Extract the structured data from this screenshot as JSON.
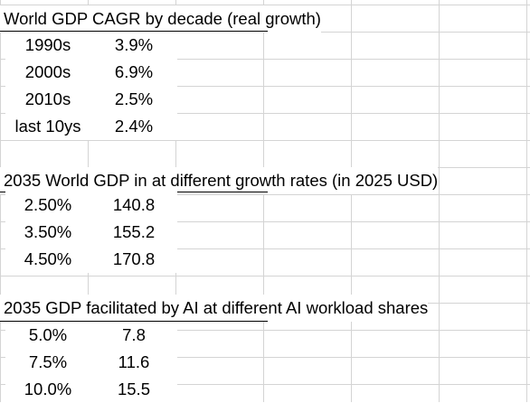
{
  "section1": {
    "title": "World GDP CAGR by decade (real growth)",
    "rows": [
      {
        "label": "1990s",
        "value": "3.9%"
      },
      {
        "label": "2000s",
        "value": "6.9%"
      },
      {
        "label": "2010s",
        "value": "2.5%"
      },
      {
        "label": "last 10ys",
        "value": "2.4%"
      }
    ]
  },
  "section2": {
    "title": "2035 World GDP in at different growth rates (in 2025 USD)",
    "rows": [
      {
        "rate": "2.50%",
        "value": "140.8"
      },
      {
        "rate": "3.50%",
        "value": "155.2"
      },
      {
        "rate": "4.50%",
        "value": "170.8"
      }
    ]
  },
  "section3": {
    "title": "2035 GDP facilitated by AI at different AI workload shares",
    "rows": [
      {
        "share": "5.0%",
        "value": "7.8"
      },
      {
        "share": "7.5%",
        "value": "11.6"
      },
      {
        "share": "10.0%",
        "value": "15.5"
      }
    ]
  }
}
